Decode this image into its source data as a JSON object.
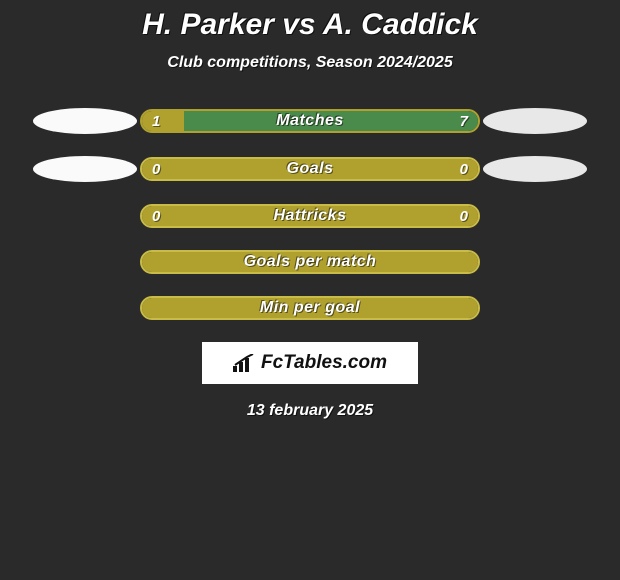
{
  "title": "H. Parker vs A. Caddick",
  "subtitle": "Club competitions, Season 2024/2025",
  "footer_logo": "FcTables.com",
  "footer_date": "13 february 2025",
  "colors": {
    "background": "#2a2a2a",
    "primary": "#b0a12f",
    "primary_light": "#c8bb47",
    "secondary": "#4a8a4a",
    "ellipse_left": "#fafafa",
    "ellipse_right": "#e8e8e8",
    "text": "#ffffff"
  },
  "bars": [
    {
      "label": "Matches",
      "left_value": "1",
      "right_value": "7",
      "left_pct": 12.5,
      "right_pct": 87.5,
      "show_values": true,
      "show_side_ellipses": true,
      "border_color": "#b0a12f",
      "left_fill": "#b0a12f",
      "right_fill": "#4a8a4a"
    },
    {
      "label": "Goals",
      "left_value": "0",
      "right_value": "0",
      "left_pct": 100,
      "right_pct": 0,
      "show_values": true,
      "show_side_ellipses": true,
      "border_color": "#c8bb47",
      "left_fill": "#b0a12f",
      "right_fill": "#4a8a4a"
    },
    {
      "label": "Hattricks",
      "left_value": "0",
      "right_value": "0",
      "left_pct": 100,
      "right_pct": 0,
      "show_values": true,
      "show_side_ellipses": false,
      "border_color": "#c8bb47",
      "left_fill": "#b0a12f",
      "right_fill": "#4a8a4a"
    },
    {
      "label": "Goals per match",
      "left_value": "",
      "right_value": "",
      "left_pct": 100,
      "right_pct": 0,
      "show_values": false,
      "show_side_ellipses": false,
      "border_color": "#c8bb47",
      "left_fill": "#b0a12f",
      "right_fill": "#4a8a4a"
    },
    {
      "label": "Min per goal",
      "left_value": "",
      "right_value": "",
      "left_pct": 100,
      "right_pct": 0,
      "show_values": false,
      "show_side_ellipses": false,
      "border_color": "#c8bb47",
      "left_fill": "#b0a12f",
      "right_fill": "#4a8a4a"
    }
  ]
}
